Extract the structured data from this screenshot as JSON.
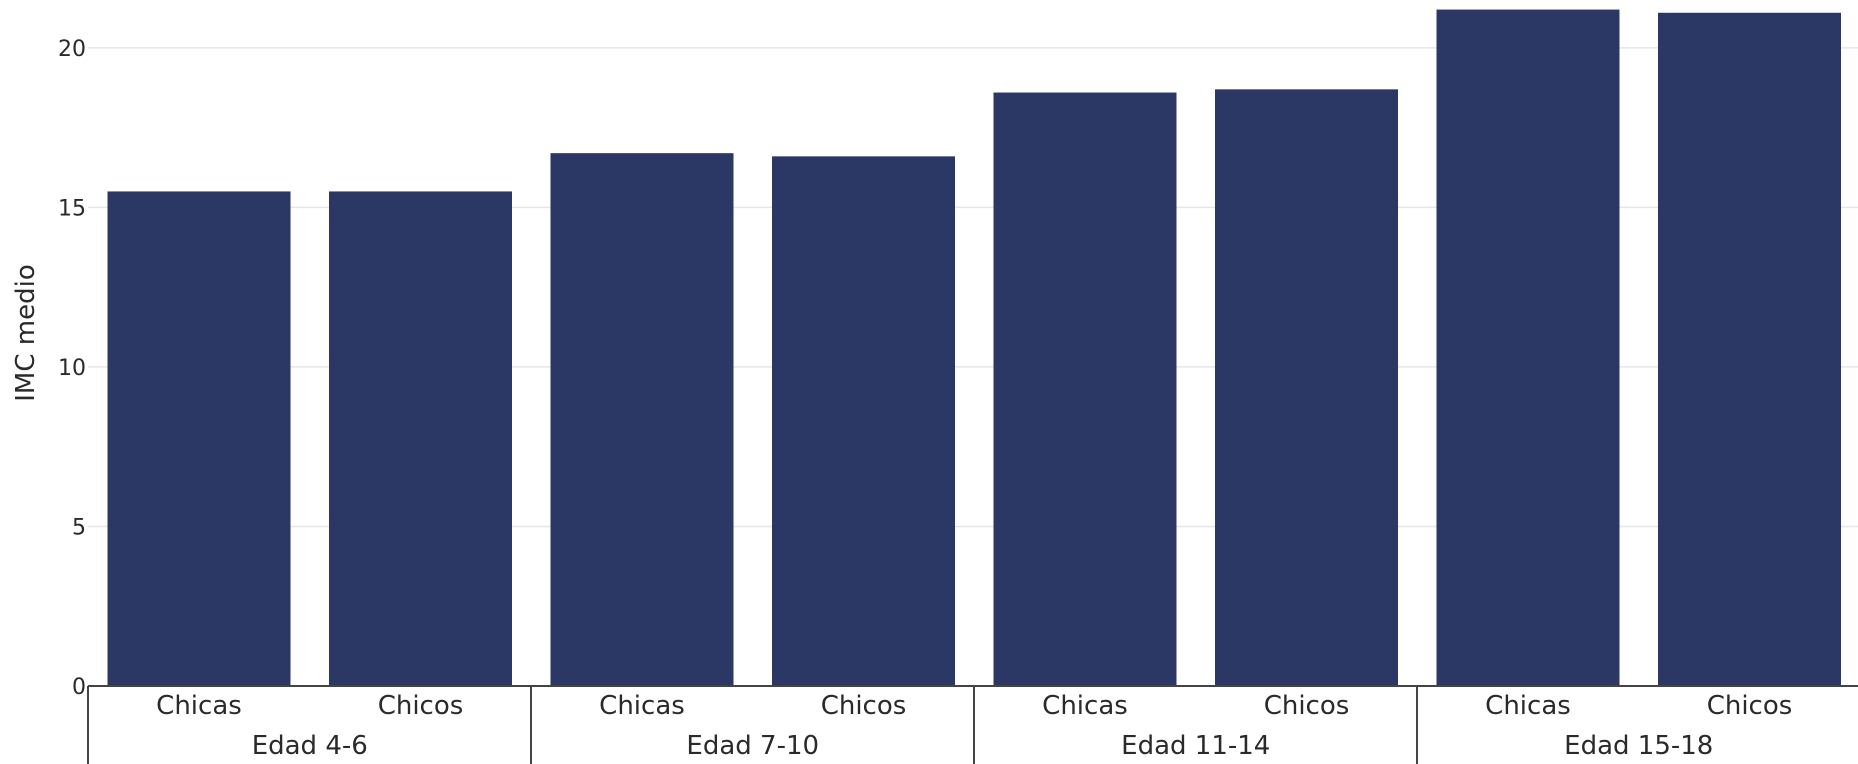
{
  "chart_data": {
    "type": "bar",
    "title": "",
    "xlabel": "",
    "ylabel": "IMC medio",
    "ylim": [
      0,
      21.5
    ],
    "yticks": [
      0,
      5,
      10,
      15,
      20
    ],
    "grid": true,
    "bar_color": "#2b3764",
    "groups": [
      "Edad 4-6",
      "Edad 7-10",
      "Edad 11-14",
      "Edad 15-18"
    ],
    "subcategories": [
      "Chicas",
      "Chicos"
    ],
    "categories": [
      "Chicas",
      "Chicos",
      "Chicas",
      "Chicos",
      "Chicas",
      "Chicos",
      "Chicas",
      "Chicos"
    ],
    "values": [
      15.5,
      15.5,
      16.7,
      16.6,
      18.6,
      18.7,
      21.2,
      21.1
    ]
  }
}
